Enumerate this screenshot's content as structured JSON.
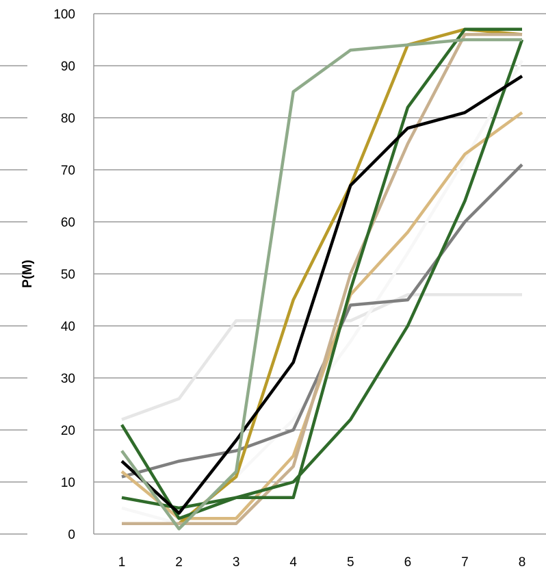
{
  "chart_data": {
    "type": "line",
    "title": "",
    "xlabel": "",
    "ylabel": "P(M)",
    "categories": [
      "1",
      "2",
      "3",
      "4",
      "5",
      "6",
      "7",
      "8"
    ],
    "ylim": [
      0,
      100
    ],
    "yticks": [
      "0",
      "10",
      "20",
      "30",
      "40",
      "50",
      "60",
      "70",
      "80",
      "90",
      "100"
    ],
    "grid": true,
    "legend": "none",
    "series": [
      {
        "color": "#e6e6e6",
        "values": [
          22,
          26,
          41,
          41,
          41,
          46,
          46,
          46
        ]
      },
      {
        "color": "#f7f7f7",
        "values": [
          5,
          2,
          11,
          22,
          37,
          54,
          72,
          91
        ]
      },
      {
        "color": "#7f7f7f",
        "values": [
          11,
          14,
          16,
          20,
          44,
          45,
          60,
          71
        ]
      },
      {
        "color": "#d9b97f",
        "values": [
          12,
          3,
          3,
          15,
          46,
          58,
          73,
          81
        ]
      },
      {
        "color": "#b99b2a",
        "values": [
          2,
          2,
          11,
          45,
          67,
          94,
          97,
          96
        ]
      },
      {
        "color": "#c8b08f",
        "values": [
          2,
          2,
          2,
          13,
          50,
          75,
          96,
          96
        ]
      },
      {
        "color": "#2f6b2a",
        "values": [
          21,
          3,
          7,
          7,
          47,
          82,
          97,
          97
        ]
      },
      {
        "color": "#2f6b2a",
        "values": [
          7,
          5,
          7,
          10,
          22,
          40,
          64,
          95
        ]
      },
      {
        "color": "#000000",
        "values": [
          14,
          4,
          18,
          33,
          67,
          78,
          81,
          88
        ]
      },
      {
        "color": "#8fab8a",
        "values": [
          16,
          1,
          12,
          85,
          93,
          94,
          95,
          95
        ]
      }
    ]
  }
}
